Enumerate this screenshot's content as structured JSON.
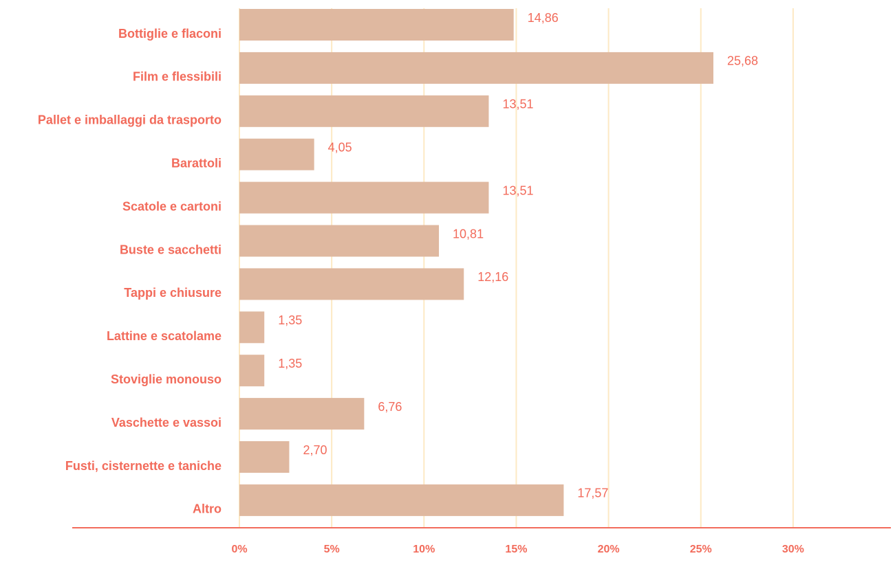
{
  "chart_data": {
    "type": "bar",
    "orientation": "horizontal",
    "categories": [
      "Bottiglie e flaconi",
      "Film e flessibili",
      "Pallet e imballaggi da trasporto",
      "Barattoli",
      "Scatole e cartoni",
      "Buste e sacchetti",
      "Tappi e chiusure",
      "Lattine e scatolame",
      "Stoviglie monouso",
      "Vaschette e vassoi",
      "Fusti, cisternette e taniche",
      "Altro"
    ],
    "values": [
      14.86,
      25.68,
      13.51,
      4.05,
      13.51,
      10.81,
      12.16,
      1.35,
      1.35,
      6.76,
      2.7,
      17.57
    ],
    "value_labels": [
      "14,86",
      "25,68",
      "13,51",
      "4,05",
      "13,51",
      "10,81",
      "12,16",
      "1,35",
      "1,35",
      "6,76",
      "2,70",
      "17,57"
    ],
    "color": "#dfb8a0",
    "xlim": [
      0,
      35
    ],
    "xticks": [
      {
        "value": 0,
        "label": "0%"
      },
      {
        "value": 5,
        "label": "5%"
      },
      {
        "value": 10,
        "label": "10%"
      },
      {
        "value": 15,
        "label": "15%"
      },
      {
        "value": 20,
        "label": "20%"
      },
      {
        "value": 25,
        "label": "25%"
      },
      {
        "value": 30,
        "label": "30%"
      }
    ],
    "grid": true
  }
}
